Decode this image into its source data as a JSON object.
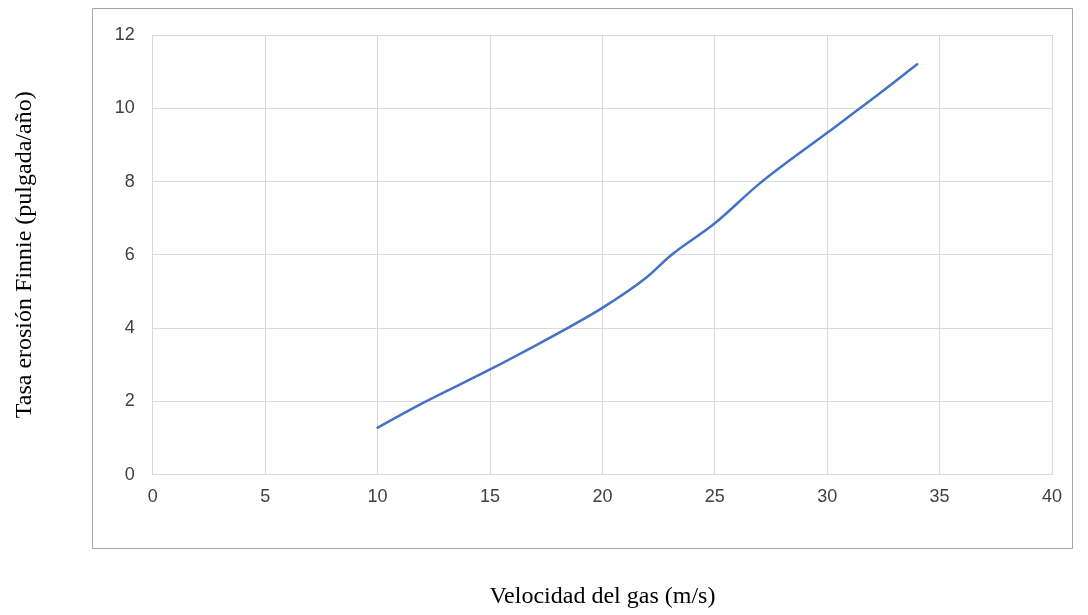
{
  "chart_data": {
    "type": "line",
    "xlabel": "Velocidad del gas (m/s)",
    "ylabel": "Tasa erosión Finnie (pulgada/año)",
    "x": [
      10,
      12,
      15,
      18,
      20,
      22,
      23,
      25,
      27,
      30,
      32,
      34
    ],
    "series": [
      {
        "color": "#4472c4",
        "values": [
          1.28,
          1.95,
          2.87,
          3.85,
          4.55,
          5.4,
          5.96,
          6.86,
          7.95,
          9.33,
          10.25,
          11.2
        ]
      }
    ],
    "xlim": [
      0,
      40
    ],
    "xticks": [
      0,
      5,
      10,
      15,
      20,
      25,
      30,
      35,
      40
    ],
    "ylim": [
      0,
      12
    ],
    "yticks": [
      0,
      2,
      4,
      6,
      8,
      10,
      12
    ],
    "grid": true,
    "legend": false,
    "marker": "none",
    "line_style": "solid"
  }
}
